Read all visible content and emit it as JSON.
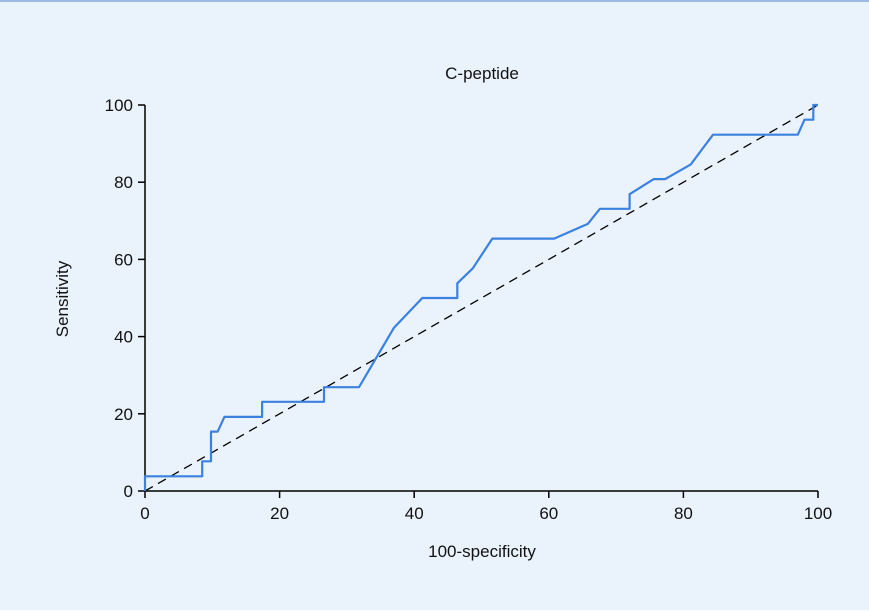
{
  "chart_data": {
    "type": "line",
    "title": "C-peptide",
    "xlabel": "100-specificity",
    "ylabel": "Sensitivity",
    "xlim": [
      0,
      100
    ],
    "ylim": [
      0,
      100
    ],
    "xticks": [
      0,
      20,
      40,
      60,
      80,
      100
    ],
    "yticks": [
      0,
      20,
      40,
      60,
      80,
      100
    ],
    "grid": false,
    "colors": {
      "curve": "#3b82e0",
      "reference": "#000000",
      "background": "#eaf2fb"
    },
    "series": [
      {
        "x": [
          0,
          0,
          8.5,
          8.5,
          9.8,
          9.8,
          10.8,
          11.8,
          17.4,
          17.4,
          26.6,
          26.6,
          31.8,
          37,
          41.2,
          46.4,
          46.4,
          48.7,
          51.6,
          60.8,
          65.8,
          67.6,
          72,
          72,
          75.6,
          77.3,
          81.1,
          84.4,
          97,
          98,
          99.3,
          99.3,
          100
        ],
        "y": [
          0,
          3.8,
          3.8,
          7.7,
          7.7,
          15.4,
          15.4,
          19.2,
          19.2,
          23.1,
          23.1,
          26.9,
          26.9,
          42.3,
          50,
          50,
          53.8,
          57.7,
          65.4,
          65.4,
          69.2,
          73.1,
          73.1,
          76.9,
          80.8,
          80.8,
          84.6,
          92.3,
          92.3,
          96.2,
          96.2,
          100,
          100
        ]
      }
    ],
    "reference_line": {
      "x": [
        0,
        100
      ],
      "y": [
        0,
        100
      ],
      "style": "dashed"
    }
  }
}
